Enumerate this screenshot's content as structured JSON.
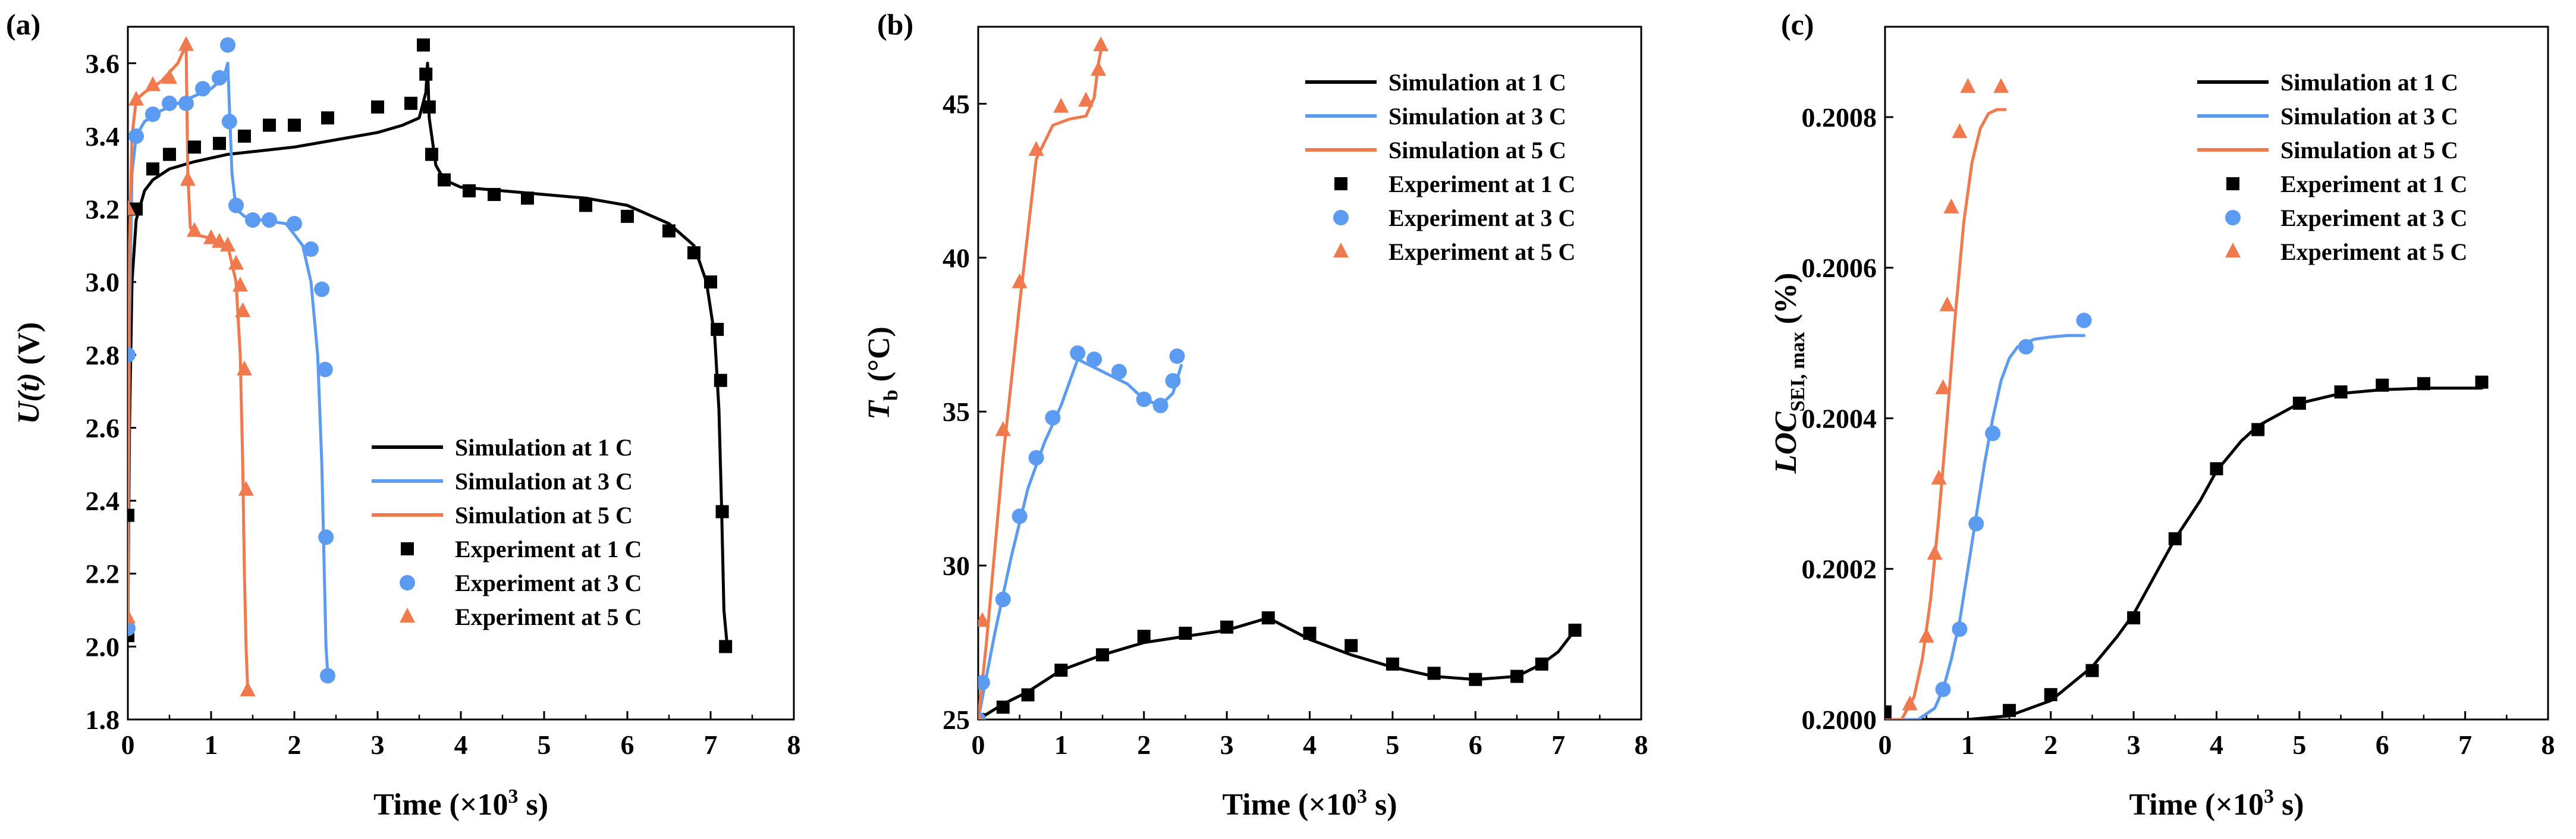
{
  "chart_data": [
    {
      "panel": "(a)",
      "type": "line",
      "xlabel_main": "Time (×10",
      "xlabel_exp": "3",
      "xlabel_tail": " s)",
      "ylabel_main": "U(t)",
      "ylabel_unit": " (V)",
      "xlim": [
        0,
        8
      ],
      "ylim": [
        1.8,
        3.7
      ],
      "xticks": [
        "0",
        "1",
        "2",
        "3",
        "4",
        "5",
        "6",
        "7",
        "8"
      ],
      "yticks": [
        "1.8",
        "2.0",
        "2.2",
        "2.4",
        "2.6",
        "2.8",
        "3.0",
        "3.2",
        "3.4",
        "3.6"
      ],
      "legend_position": "center-right",
      "series": [
        {
          "name": "Simulation at 1 C",
          "kind": "line",
          "color": "#000000",
          "x": [
            0.0,
            0.02,
            0.05,
            0.1,
            0.2,
            0.3,
            0.5,
            0.8,
            1.2,
            1.6,
            2.0,
            2.5,
            3.0,
            3.3,
            3.5,
            3.58,
            3.6,
            3.62,
            3.7,
            3.8,
            4.0,
            4.5,
            5.0,
            5.5,
            6.0,
            6.5,
            6.8,
            6.95,
            7.05,
            7.1,
            7.13,
            7.16,
            7.2
          ],
          "y": [
            2.05,
            2.6,
            3.0,
            3.17,
            3.25,
            3.28,
            3.31,
            3.33,
            3.35,
            3.36,
            3.37,
            3.39,
            3.41,
            3.43,
            3.45,
            3.52,
            3.6,
            3.45,
            3.32,
            3.28,
            3.26,
            3.25,
            3.24,
            3.23,
            3.21,
            3.16,
            3.1,
            3.0,
            2.85,
            2.65,
            2.4,
            2.1,
            2.0
          ]
        },
        {
          "name": "Simulation at 3 C",
          "kind": "line",
          "color": "#5b9cf2",
          "x": [
            0.0,
            0.02,
            0.05,
            0.1,
            0.2,
            0.4,
            0.7,
            1.0,
            1.15,
            1.2,
            1.25,
            1.3,
            1.4,
            1.6,
            1.9,
            2.1,
            2.2,
            2.28,
            2.33,
            2.36,
            2.38,
            2.4
          ],
          "y": [
            2.1,
            2.9,
            3.3,
            3.4,
            3.44,
            3.47,
            3.5,
            3.53,
            3.56,
            3.6,
            3.3,
            3.2,
            3.18,
            3.17,
            3.16,
            3.1,
            3.0,
            2.8,
            2.5,
            2.2,
            2.0,
            1.93
          ]
        },
        {
          "name": "Simulation at 5 C",
          "kind": "line",
          "color": "#f07a4d",
          "x": [
            0.0,
            0.02,
            0.05,
            0.1,
            0.2,
            0.4,
            0.6,
            0.7,
            0.72,
            0.75,
            0.8,
            1.0,
            1.2,
            1.3,
            1.35,
            1.38,
            1.4,
            1.42,
            1.44
          ],
          "y": [
            2.1,
            3.1,
            3.4,
            3.5,
            3.52,
            3.55,
            3.6,
            3.65,
            3.3,
            3.15,
            3.13,
            3.12,
            3.1,
            3.0,
            2.8,
            2.5,
            2.2,
            2.0,
            1.88
          ]
        },
        {
          "name": "Experiment at 1 C",
          "kind": "scatter",
          "marker": "square",
          "color": "#000000",
          "x": [
            0.0,
            0.0,
            0.1,
            0.3,
            0.5,
            0.8,
            1.1,
            1.4,
            1.7,
            2.0,
            2.4,
            3.0,
            3.4,
            3.55,
            3.58,
            3.62,
            3.65,
            3.8,
            4.1,
            4.4,
            4.8,
            5.5,
            6.0,
            6.5,
            6.8,
            7.0,
            7.08,
            7.12,
            7.14,
            7.18
          ],
          "x_note": "",
          "y": [
            2.36,
            2.03,
            3.2,
            3.31,
            3.35,
            3.37,
            3.38,
            3.4,
            3.43,
            3.43,
            3.45,
            3.48,
            3.49,
            3.65,
            3.57,
            3.48,
            3.35,
            3.28,
            3.25,
            3.24,
            3.23,
            3.21,
            3.18,
            3.14,
            3.08,
            3.0,
            2.87,
            2.73,
            2.37,
            2.0
          ]
        },
        {
          "name": "Experiment at 3 C",
          "kind": "scatter",
          "marker": "circle",
          "color": "#5b9cf2",
          "x": [
            0.0,
            0.0,
            0.1,
            0.3,
            0.5,
            0.7,
            0.9,
            1.1,
            1.2,
            1.22,
            1.3,
            1.5,
            1.7,
            2.0,
            2.2,
            2.33,
            2.37,
            2.38,
            2.4
          ],
          "y": [
            2.8,
            2.05,
            3.4,
            3.46,
            3.49,
            3.49,
            3.53,
            3.56,
            3.65,
            3.44,
            3.21,
            3.17,
            3.17,
            3.16,
            3.09,
            2.98,
            2.76,
            2.3,
            1.92
          ]
        },
        {
          "name": "Experiment at 5 C",
          "kind": "scatter",
          "marker": "triangle",
          "color": "#f07a4d",
          "x": [
            0.0,
            0.0,
            0.1,
            0.3,
            0.5,
            0.7,
            0.72,
            0.8,
            1.0,
            1.1,
            1.2,
            1.3,
            1.35,
            1.38,
            1.4,
            1.42,
            1.44
          ],
          "y": [
            3.2,
            2.08,
            3.5,
            3.54,
            3.56,
            3.65,
            3.28,
            3.14,
            3.12,
            3.11,
            3.1,
            3.05,
            2.99,
            2.92,
            2.76,
            2.43,
            1.88
          ]
        }
      ]
    },
    {
      "panel": "(b)",
      "type": "line",
      "xlabel_main": "Time (×10",
      "xlabel_exp": "3",
      "xlabel_tail": " s)",
      "ylabel_main": "T",
      "ylabel_sub": "b",
      "ylabel_unit": " (°C)",
      "xlim": [
        0,
        8
      ],
      "ylim": [
        25,
        47.5
      ],
      "xticks": [
        "0",
        "1",
        "2",
        "3",
        "4",
        "5",
        "6",
        "7",
        "8"
      ],
      "yticks": [
        "25",
        "30",
        "35",
        "40",
        "45"
      ],
      "legend_position": "top-right",
      "series": [
        {
          "name": "Simulation at 1 C",
          "kind": "line",
          "color": "#000000",
          "x": [
            0.0,
            0.3,
            0.6,
            1.0,
            1.5,
            2.0,
            2.5,
            3.0,
            3.5,
            4.0,
            4.5,
            5.0,
            5.5,
            6.0,
            6.5,
            6.8,
            7.0,
            7.2
          ],
          "y": [
            25.0,
            25.5,
            25.9,
            26.6,
            27.1,
            27.5,
            27.7,
            27.9,
            28.3,
            27.6,
            27.1,
            26.7,
            26.4,
            26.3,
            26.4,
            26.8,
            27.2,
            27.9
          ]
        },
        {
          "name": "Simulation at 3 C",
          "kind": "line",
          "color": "#5b9cf2",
          "x": [
            0.0,
            0.2,
            0.4,
            0.6,
            0.8,
            1.0,
            1.2,
            1.5,
            1.8,
            2.0,
            2.2,
            2.35,
            2.45
          ],
          "y": [
            25.0,
            27.8,
            30.3,
            32.5,
            34.0,
            35.2,
            36.7,
            36.3,
            35.9,
            35.4,
            35.2,
            35.6,
            36.5
          ]
        },
        {
          "name": "Simulation at 5 C",
          "kind": "line",
          "color": "#f07a4d",
          "x": [
            0.0,
            0.1,
            0.3,
            0.5,
            0.7,
            0.9,
            1.1,
            1.3,
            1.4,
            1.45,
            1.5
          ],
          "y": [
            25.0,
            27.5,
            33.5,
            38.5,
            43.2,
            44.3,
            44.5,
            44.6,
            45.2,
            46.3,
            47.0
          ]
        },
        {
          "name": "Experiment at 1 C",
          "kind": "scatter",
          "marker": "square",
          "color": "#000000",
          "x": [
            0.0,
            0.3,
            0.6,
            1.0,
            1.5,
            2.0,
            2.5,
            3.0,
            3.5,
            4.0,
            4.5,
            5.0,
            5.5,
            6.0,
            6.5,
            6.8,
            7.2
          ],
          "y": [
            25.0,
            25.4,
            25.8,
            26.6,
            27.1,
            27.7,
            27.8,
            28.0,
            28.3,
            27.8,
            27.4,
            26.8,
            26.5,
            26.3,
            26.4,
            26.8,
            27.9
          ]
        },
        {
          "name": "Experiment at 3 C",
          "kind": "scatter",
          "marker": "circle",
          "color": "#5b9cf2",
          "x": [
            0.0,
            0.05,
            0.3,
            0.5,
            0.7,
            0.9,
            1.2,
            1.4,
            1.7,
            2.0,
            2.2,
            2.35,
            2.4
          ],
          "y": [
            25.0,
            26.2,
            28.9,
            31.6,
            33.5,
            34.8,
            36.9,
            36.7,
            36.3,
            35.4,
            35.2,
            36.0,
            36.8
          ]
        },
        {
          "name": "Experiment at 5 C",
          "kind": "scatter",
          "marker": "triangle",
          "color": "#f07a4d",
          "x": [
            0.0,
            0.05,
            0.3,
            0.5,
            0.7,
            1.0,
            1.3,
            1.45,
            1.48
          ],
          "y": [
            25.0,
            28.2,
            34.4,
            39.2,
            43.5,
            44.9,
            45.1,
            46.1,
            46.9
          ]
        }
      ]
    },
    {
      "panel": "(c)",
      "type": "line",
      "xlabel_main": "Time (×10",
      "xlabel_exp": "3",
      "xlabel_tail": " s)",
      "ylabel_main": "LOC",
      "ylabel_sub": "SEI, max",
      "ylabel_unit": " (%)",
      "xlim": [
        0,
        8
      ],
      "ylim": [
        0.2,
        0.20092
      ],
      "xticks": [
        "0",
        "1",
        "2",
        "3",
        "4",
        "5",
        "6",
        "7",
        "8"
      ],
      "yticks": [
        "0.2000",
        "0.2002",
        "0.2004",
        "0.2006",
        "0.2008"
      ],
      "legend_position": "top-right",
      "series": [
        {
          "name": "Simulation at 1 C",
          "kind": "line",
          "color": "#000000",
          "x": [
            0.0,
            0.5,
            1.0,
            1.5,
            2.0,
            2.5,
            2.8,
            3.0,
            3.3,
            3.5,
            3.8,
            4.0,
            4.3,
            4.5,
            5.0,
            5.5,
            6.0,
            6.5,
            7.0,
            7.2
          ],
          "y": [
            0.2,
            0.2,
            0.2,
            0.200005,
            0.200025,
            0.20007,
            0.20011,
            0.20014,
            0.2002,
            0.20024,
            0.20029,
            0.20033,
            0.20037,
            0.20039,
            0.20042,
            0.200433,
            0.200438,
            0.20044,
            0.20044,
            0.20044
          ]
        },
        {
          "name": "Simulation at 3 C",
          "kind": "line",
          "color": "#5b9cf2",
          "x": [
            0.0,
            0.4,
            0.6,
            0.7,
            0.8,
            0.9,
            1.0,
            1.1,
            1.2,
            1.3,
            1.4,
            1.5,
            1.6,
            1.8,
            2.0,
            2.2,
            2.4
          ],
          "y": [
            0.2,
            0.2,
            0.200015,
            0.20004,
            0.20008,
            0.20013,
            0.2002,
            0.20027,
            0.20034,
            0.2004,
            0.20045,
            0.20048,
            0.200495,
            0.200505,
            0.200508,
            0.20051,
            0.20051
          ]
        },
        {
          "name": "Simulation at 5 C",
          "kind": "line",
          "color": "#f07a4d",
          "x": [
            0.0,
            0.2,
            0.35,
            0.45,
            0.55,
            0.65,
            0.75,
            0.85,
            0.95,
            1.05,
            1.15,
            1.25,
            1.35,
            1.45
          ],
          "y": [
            0.2,
            0.2,
            0.20003,
            0.20008,
            0.20016,
            0.20027,
            0.2004,
            0.20054,
            0.20066,
            0.20074,
            0.200785,
            0.200805,
            0.20081,
            0.20081
          ]
        },
        {
          "name": "Experiment at 1 C",
          "kind": "scatter",
          "marker": "square",
          "color": "#000000",
          "x": [
            0.0,
            1.5,
            2.0,
            2.5,
            3.0,
            3.5,
            4.0,
            4.5,
            5.0,
            5.5,
            6.0,
            6.5,
            7.2
          ],
          "y": [
            0.20001,
            0.200012,
            0.200033,
            0.200065,
            0.200135,
            0.20024,
            0.200333,
            0.200385,
            0.20042,
            0.200435,
            0.200444,
            0.200446,
            0.200448
          ]
        },
        {
          "name": "Experiment at 3 C",
          "kind": "scatter",
          "marker": "circle",
          "color": "#5b9cf2",
          "x": [
            0.7,
            0.9,
            1.1,
            1.3,
            1.7,
            2.4
          ],
          "y": [
            0.20004,
            0.20012,
            0.20026,
            0.20038,
            0.200495,
            0.20053
          ]
        },
        {
          "name": "Experiment at 5 C",
          "kind": "scatter",
          "marker": "triangle",
          "color": "#f07a4d",
          "x": [
            0.3,
            0.5,
            0.6,
            0.65,
            0.7,
            0.75,
            0.8,
            0.9,
            1.0,
            1.4
          ],
          "y": [
            0.20002,
            0.20011,
            0.20022,
            0.20032,
            0.20044,
            0.20055,
            0.20068,
            0.20078,
            0.20084,
            0.20084
          ]
        }
      ]
    }
  ]
}
